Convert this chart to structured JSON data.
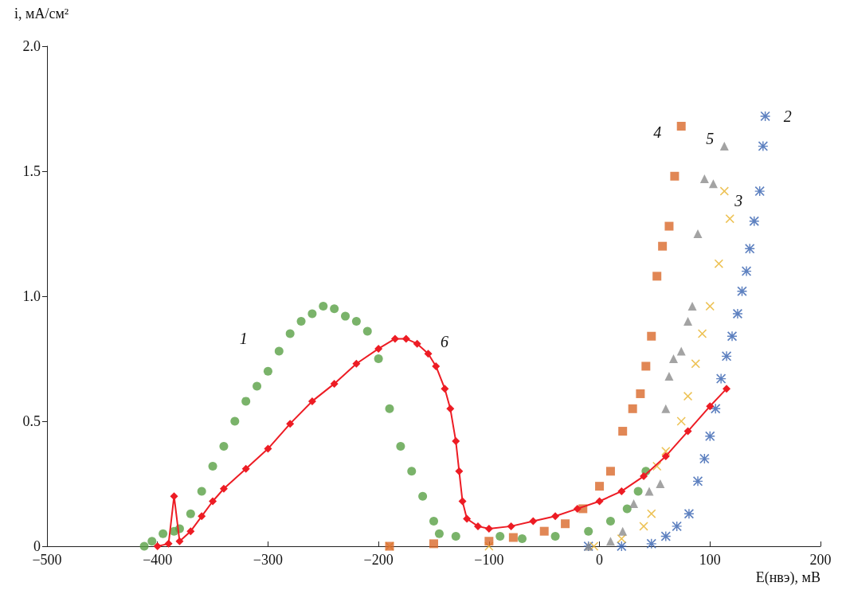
{
  "chart_data": {
    "type": "scatter",
    "xlabel": "E(нвэ), мВ",
    "ylabel": "i, мА/см²",
    "xlim": [
      -500,
      200
    ],
    "xticks": [
      {
        "value": -500,
        "label": "−500"
      },
      {
        "value": -400,
        "label": "−400"
      },
      {
        "value": -300,
        "label": "−300"
      },
      {
        "value": -200,
        "label": "−200"
      },
      {
        "value": -100,
        "label": "−100"
      },
      0,
      100,
      200
    ],
    "ylim": [
      0,
      2
    ],
    "yticks": [
      0,
      0.5,
      {
        "value": 1,
        "label": "1.0"
      },
      1.5,
      {
        "value": 2,
        "label": "2.0"
      }
    ],
    "grid": false,
    "series": [
      {
        "name": "1",
        "color": "#59a045",
        "marker": "circle",
        "x": [
          -412,
          -405,
          -395,
          -385,
          -380,
          -370,
          -360,
          -350,
          -340,
          -330,
          -320,
          -310,
          -300,
          -290,
          -280,
          -270,
          -260,
          -250,
          -240,
          -230,
          -220,
          -210,
          -200,
          -190,
          -180,
          -170,
          -160,
          -150,
          -145,
          -130,
          -90,
          -70,
          -40,
          -10,
          10,
          25,
          35,
          42
        ],
        "values": [
          0,
          0.02,
          0.05,
          0.06,
          0.07,
          0.13,
          0.22,
          0.32,
          0.4,
          0.5,
          0.58,
          0.64,
          0.7,
          0.78,
          0.85,
          0.9,
          0.93,
          0.96,
          0.95,
          0.92,
          0.9,
          0.86,
          0.75,
          0.55,
          0.4,
          0.3,
          0.2,
          0.1,
          0.05,
          0.04,
          0.04,
          0.03,
          0.04,
          0.06,
          0.1,
          0.15,
          0.22,
          0.3
        ]
      },
      {
        "name": "2",
        "color": "#3662b0",
        "marker": "star",
        "x": [
          -10,
          20,
          47,
          60,
          70,
          81,
          89,
          95,
          100,
          105,
          110,
          115,
          120,
          125,
          129,
          133,
          136,
          140,
          145,
          148,
          150
        ],
        "values": [
          0,
          0,
          0.01,
          0.04,
          0.08,
          0.13,
          0.26,
          0.35,
          0.44,
          0.55,
          0.67,
          0.76,
          0.84,
          0.93,
          1.02,
          1.1,
          1.19,
          1.3,
          1.42,
          1.6,
          1.72
        ]
      },
      {
        "name": "3",
        "color": "#e8b32a",
        "marker": "cross",
        "x": [
          -190,
          -100,
          -5,
          20,
          40,
          47,
          52,
          60,
          74,
          80,
          87,
          93,
          100,
          108,
          113,
          118
        ],
        "values": [
          0,
          0,
          0,
          0.03,
          0.08,
          0.13,
          0.32,
          0.38,
          0.5,
          0.6,
          0.73,
          0.85,
          0.96,
          1.13,
          1.42,
          1.31
        ]
      },
      {
        "name": "4",
        "color": "#d9692a",
        "marker": "square",
        "x": [
          -190,
          -150,
          -100,
          -78,
          -50,
          -31,
          -15,
          0,
          10,
          21,
          30,
          37,
          42,
          47,
          52,
          57,
          63,
          68,
          74
        ],
        "values": [
          0,
          0.01,
          0.02,
          0.035,
          0.06,
          0.09,
          0.15,
          0.24,
          0.3,
          0.46,
          0.55,
          0.61,
          0.72,
          0.84,
          1.08,
          1.2,
          1.28,
          1.48,
          1.68
        ]
      },
      {
        "name": "5",
        "color": "#8c8c8c",
        "marker": "triangle",
        "x": [
          -10,
          10,
          21,
          31,
          45,
          55,
          60,
          63,
          67,
          74,
          80,
          84,
          89,
          95,
          103,
          113
        ],
        "values": [
          0,
          0.02,
          0.06,
          0.17,
          0.22,
          0.25,
          0.55,
          0.68,
          0.75,
          0.78,
          0.9,
          0.96,
          1.25,
          1.47,
          1.45,
          1.6
        ]
      },
      {
        "name": "6",
        "type": "line",
        "color": "#ed1c24",
        "marker": "diamond",
        "x": [
          -400,
          -390,
          -385,
          -380,
          -370,
          -360,
          -350,
          -340,
          -320,
          -300,
          -280,
          -260,
          -240,
          -220,
          -200,
          -185,
          -175,
          -165,
          -155,
          -148,
          -140,
          -135,
          -130,
          -127,
          -124,
          -120,
          -110,
          -100,
          -80,
          -60,
          -40,
          -20,
          0,
          20,
          40,
          60,
          80,
          100,
          115
        ],
        "values": [
          0,
          0.01,
          0.2,
          0.02,
          0.06,
          0.12,
          0.18,
          0.23,
          0.31,
          0.39,
          0.49,
          0.58,
          0.65,
          0.73,
          0.79,
          0.83,
          0.83,
          0.81,
          0.77,
          0.72,
          0.63,
          0.55,
          0.42,
          0.3,
          0.18,
          0.11,
          0.08,
          0.07,
          0.08,
          0.1,
          0.12,
          0.15,
          0.18,
          0.22,
          0.28,
          0.36,
          0.46,
          0.56,
          0.63
        ]
      }
    ]
  }
}
